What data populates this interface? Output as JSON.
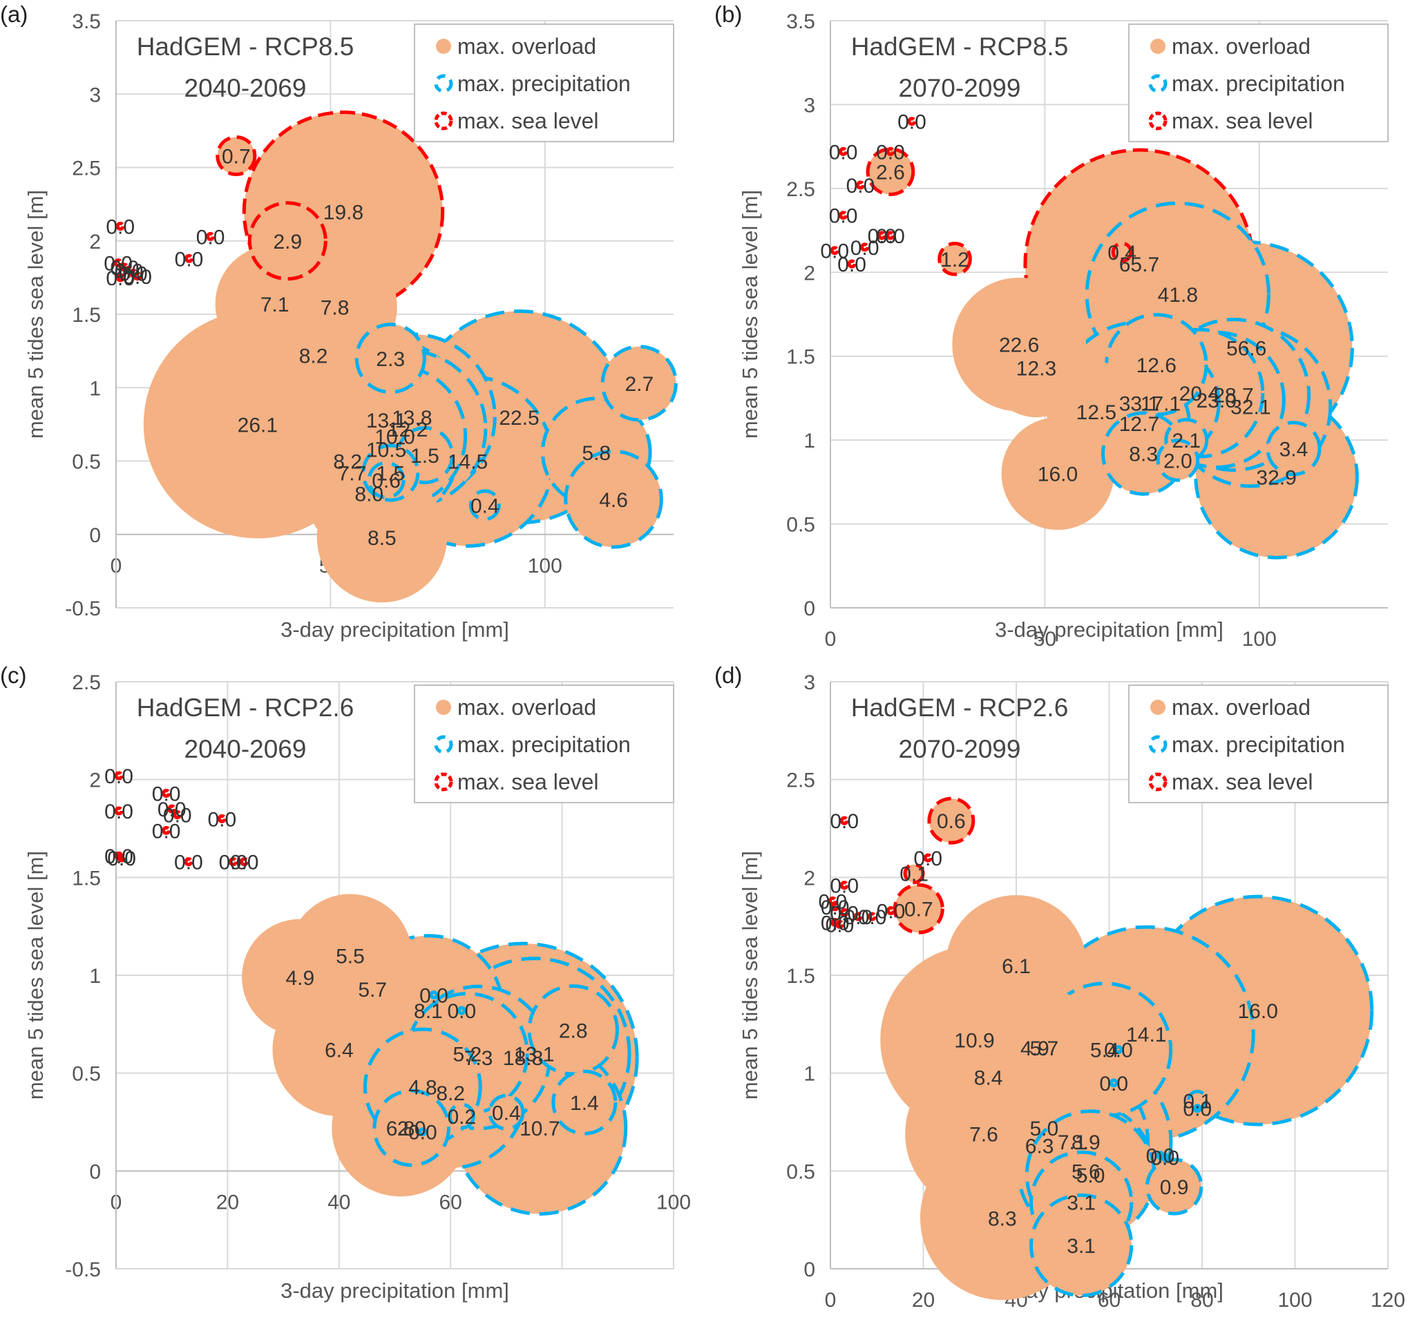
{
  "colors": {
    "overload": "#F4B183",
    "precipitation": "#00B0F0",
    "sea_level": "#FF0000",
    "grid": "#D9D9D9",
    "text": "#404040"
  },
  "legend": {
    "items": [
      {
        "label": "max. overload",
        "kind": "overload"
      },
      {
        "label": "max. precipitation",
        "kind": "precipitation"
      },
      {
        "label": "max. sea level",
        "kind": "sea_level"
      }
    ],
    "placement": "top-right"
  },
  "chart_data": [
    {
      "panel": "(a)",
      "type": "bubble",
      "title": [
        "HadGEM - RCP8.5",
        "2040-2069"
      ],
      "xlabel": "3-day precipitation [mm]",
      "ylabel": "mean 5 tides sea level [m]",
      "xlim": [
        0,
        130
      ],
      "ylim": [
        -0.5,
        3.5
      ],
      "xticks": [
        0,
        50,
        100
      ],
      "yticks": [
        -0.5,
        0,
        0.5,
        1,
        1.5,
        2,
        2.5,
        3,
        3.5
      ],
      "yticklabels": [
        "-0.5",
        "0",
        "0.5",
        "1",
        "1.5",
        "2",
        "2.5",
        "3",
        "3.5"
      ],
      "points": [
        {
          "x": 33,
          "y": 0.75,
          "v": 26.1,
          "kind": "overload"
        },
        {
          "x": 94,
          "y": 0.8,
          "v": 22.5,
          "kind": "precipitation"
        },
        {
          "x": 53,
          "y": 2.2,
          "v": 19.8,
          "kind": "sea_level"
        },
        {
          "x": 82,
          "y": 0.5,
          "v": 14.5,
          "kind": "precipitation"
        },
        {
          "x": 63,
          "y": 0.78,
          "v": 13.1,
          "kind": "precipitation"
        },
        {
          "x": 69,
          "y": 0.8,
          "v": 13.8,
          "kind": "precipitation"
        },
        {
          "x": 68,
          "y": 0.72,
          "v": 12.2,
          "kind": "precipitation"
        },
        {
          "x": 65,
          "y": 0.67,
          "v": 10.0,
          "kind": "precipitation"
        },
        {
          "x": 63,
          "y": 0.58,
          "v": 10.5,
          "kind": "precipitation"
        },
        {
          "x": 46,
          "y": 1.22,
          "v": 8.2,
          "kind": "overload"
        },
        {
          "x": 54,
          "y": 0.5,
          "v": 8.2,
          "kind": "overload"
        },
        {
          "x": 62,
          "y": -0.02,
          "v": 8.5,
          "kind": "overload"
        },
        {
          "x": 59,
          "y": 0.28,
          "v": 8.0,
          "kind": "overload"
        },
        {
          "x": 51,
          "y": 1.55,
          "v": 7.8,
          "kind": "overload"
        },
        {
          "x": 55,
          "y": 0.42,
          "v": 7.7,
          "kind": "overload"
        },
        {
          "x": 37,
          "y": 1.57,
          "v": 7.1,
          "kind": "overload"
        },
        {
          "x": 112,
          "y": 0.56,
          "v": 5.8,
          "kind": "precipitation"
        },
        {
          "x": 116,
          "y": 0.24,
          "v": 4.6,
          "kind": "precipitation"
        },
        {
          "x": 40,
          "y": 2.0,
          "v": 2.9,
          "kind": "sea_level"
        },
        {
          "x": 122,
          "y": 1.03,
          "v": 2.7,
          "kind": "precipitation"
        },
        {
          "x": 64,
          "y": 1.2,
          "v": 2.3,
          "kind": "precipitation"
        },
        {
          "x": 72,
          "y": 0.54,
          "v": 1.5,
          "kind": "precipitation"
        },
        {
          "x": 64,
          "y": 0.42,
          "v": 1.5,
          "kind": "precipitation"
        },
        {
          "x": 63,
          "y": 0.37,
          "v": 0.6,
          "kind": "precipitation"
        },
        {
          "x": 28,
          "y": 2.58,
          "v": 0.7,
          "kind": "sea_level"
        },
        {
          "x": 86,
          "y": 0.2,
          "v": 0.4,
          "kind": "precipitation"
        },
        {
          "x": 1,
          "y": 2.1,
          "v": 0.0,
          "kind": "sea_level"
        },
        {
          "x": 22,
          "y": 2.03,
          "v": 0.0,
          "kind": "sea_level"
        },
        {
          "x": 17,
          "y": 1.88,
          "v": 0.0,
          "kind": "sea_level"
        },
        {
          "x": 0.5,
          "y": 1.85,
          "v": 0.0,
          "kind": "sea_level"
        },
        {
          "x": 2,
          "y": 1.82,
          "v": 0.0,
          "kind": "sea_level"
        },
        {
          "x": 3,
          "y": 1.8,
          "v": 0.0,
          "kind": "sea_level"
        },
        {
          "x": 4,
          "y": 1.78,
          "v": 0.0,
          "kind": "sea_level"
        },
        {
          "x": 1,
          "y": 1.75,
          "v": 0.0,
          "kind": "sea_level"
        },
        {
          "x": 5,
          "y": 1.76,
          "v": 0.0,
          "kind": "sea_level"
        }
      ]
    },
    {
      "panel": "(b)",
      "type": "bubble",
      "title": [
        "HadGEM - RCP8.5",
        "2070-2099"
      ],
      "xlabel": "3-day precipitation [mm]",
      "ylabel": "mean 5 tides sea level [m]",
      "xlim": [
        0,
        130
      ],
      "ylim": [
        0,
        3.5
      ],
      "xticks": [
        0,
        50,
        100
      ],
      "yticks": [
        0,
        0.5,
        1,
        1.5,
        2,
        2.5,
        3,
        3.5
      ],
      "yticklabels": [
        "0",
        "0.5",
        "1",
        "1.5",
        "2",
        "2.5",
        "3",
        "3.5"
      ],
      "points": [
        {
          "x": 72,
          "y": 2.05,
          "v": 65.7,
          "kind": "sea_level"
        },
        {
          "x": 97,
          "y": 1.55,
          "v": 56.6,
          "kind": "precipitation"
        },
        {
          "x": 81,
          "y": 1.87,
          "v": 41.8,
          "kind": "precipitation"
        },
        {
          "x": 72,
          "y": 1.22,
          "v": 33.1,
          "kind": "precipitation"
        },
        {
          "x": 104,
          "y": 0.78,
          "v": 32.9,
          "kind": "precipitation"
        },
        {
          "x": 98,
          "y": 1.2,
          "v": 32.1,
          "kind": "precipitation"
        },
        {
          "x": 94,
          "y": 1.27,
          "v": 28.7,
          "kind": "precipitation"
        },
        {
          "x": 44,
          "y": 1.57,
          "v": 22.6,
          "kind": "overload"
        },
        {
          "x": 86,
          "y": 1.28,
          "v": 20.4,
          "kind": "precipitation"
        },
        {
          "x": 90,
          "y": 1.24,
          "v": 23.0,
          "kind": "precipitation"
        },
        {
          "x": 77,
          "y": 1.22,
          "v": 17.1,
          "kind": "precipitation"
        },
        {
          "x": 53,
          "y": 0.8,
          "v": 16.0,
          "kind": "overload"
        },
        {
          "x": 76,
          "y": 1.45,
          "v": 12.6,
          "kind": "precipitation"
        },
        {
          "x": 72,
          "y": 1.1,
          "v": 12.7,
          "kind": "precipitation"
        },
        {
          "x": 62,
          "y": 1.17,
          "v": 12.5,
          "kind": "overload"
        },
        {
          "x": 48,
          "y": 1.43,
          "v": 12.3,
          "kind": "overload"
        },
        {
          "x": 73,
          "y": 0.92,
          "v": 8.3,
          "kind": "precipitation"
        },
        {
          "x": 108,
          "y": 0.95,
          "v": 3.4,
          "kind": "precipitation"
        },
        {
          "x": 14,
          "y": 2.6,
          "v": 2.6,
          "kind": "sea_level"
        },
        {
          "x": 83,
          "y": 1.0,
          "v": 2.1,
          "kind": "precipitation"
        },
        {
          "x": 81,
          "y": 0.88,
          "v": 2.0,
          "kind": "precipitation"
        },
        {
          "x": 29,
          "y": 2.08,
          "v": 1.2,
          "kind": "sea_level"
        },
        {
          "x": 68,
          "y": 2.12,
          "v": 0.4,
          "kind": "sea_level"
        },
        {
          "x": 19,
          "y": 2.9,
          "v": 0.0,
          "kind": "sea_level"
        },
        {
          "x": 3,
          "y": 2.72,
          "v": 0.0,
          "kind": "sea_level"
        },
        {
          "x": 14,
          "y": 2.72,
          "v": 0.0,
          "kind": "sea_level"
        },
        {
          "x": 7,
          "y": 2.52,
          "v": 0.0,
          "kind": "sea_level"
        },
        {
          "x": 3,
          "y": 2.34,
          "v": 0.0,
          "kind": "sea_level"
        },
        {
          "x": 12,
          "y": 2.22,
          "v": 0.0,
          "kind": "sea_level"
        },
        {
          "x": 14,
          "y": 2.22,
          "v": 0.0,
          "kind": "sea_level"
        },
        {
          "x": 8,
          "y": 2.15,
          "v": 0.0,
          "kind": "sea_level"
        },
        {
          "x": 1,
          "y": 2.13,
          "v": 0.0,
          "kind": "sea_level"
        },
        {
          "x": 5,
          "y": 2.05,
          "v": 0.0,
          "kind": "sea_level"
        }
      ]
    },
    {
      "panel": "(c)",
      "type": "bubble",
      "title": [
        "HadGEM - RCP2.6",
        "2040-2069"
      ],
      "xlabel": "3-day precipitation [mm]",
      "ylabel": "mean 5 tides sea level [m]",
      "xlim": [
        0,
        100
      ],
      "ylim": [
        -0.5,
        2.5
      ],
      "xticks": [
        0,
        20,
        40,
        60,
        80,
        100
      ],
      "yticks": [
        -0.5,
        0,
        0.5,
        1,
        1.5,
        2,
        2.5
      ],
      "yticklabels": [
        "-0.5",
        "0",
        "0.5",
        "1",
        "1.5",
        "2",
        "2.5"
      ],
      "points": [
        {
          "x": 51,
          "y": 0.22,
          "v": 6.8,
          "kind": "overload"
        },
        {
          "x": 76,
          "y": 0.22,
          "v": 10.7,
          "kind": "precipitation"
        },
        {
          "x": 73,
          "y": 0.58,
          "v": 18.8,
          "kind": "precipitation"
        },
        {
          "x": 75,
          "y": 0.6,
          "v": 13.1,
          "kind": "precipitation"
        },
        {
          "x": 56,
          "y": 0.82,
          "v": 8.1,
          "kind": "precipitation"
        },
        {
          "x": 60,
          "y": 0.4,
          "v": 8.2,
          "kind": "precipitation"
        },
        {
          "x": 65,
          "y": 0.58,
          "v": 7.3,
          "kind": "precipitation"
        },
        {
          "x": 63,
          "y": 0.6,
          "v": 5.2,
          "kind": "precipitation"
        },
        {
          "x": 55,
          "y": 0.43,
          "v": 4.8,
          "kind": "precipitation"
        },
        {
          "x": 40,
          "y": 0.62,
          "v": 6.4,
          "kind": "overload"
        },
        {
          "x": 46,
          "y": 0.93,
          "v": 5.7,
          "kind": "overload"
        },
        {
          "x": 42,
          "y": 1.1,
          "v": 5.5,
          "kind": "overload"
        },
        {
          "x": 33,
          "y": 0.99,
          "v": 4.9,
          "kind": "overload"
        },
        {
          "x": 82,
          "y": 0.72,
          "v": 2.8,
          "kind": "precipitation"
        },
        {
          "x": 84,
          "y": 0.35,
          "v": 1.4,
          "kind": "precipitation"
        },
        {
          "x": 70,
          "y": 0.3,
          "v": 0.4,
          "kind": "precipitation"
        },
        {
          "x": 62,
          "y": 0.28,
          "v": 0.2,
          "kind": "precipitation"
        },
        {
          "x": 53,
          "y": 0.22,
          "v": 2.0,
          "kind": "precipitation"
        },
        {
          "x": 55,
          "y": 0.2,
          "v": 0.0,
          "kind": "precipitation"
        },
        {
          "x": 57,
          "y": 0.9,
          "v": 0.0,
          "kind": "precipitation"
        },
        {
          "x": 62,
          "y": 0.82,
          "v": 0.0,
          "kind": "precipitation"
        },
        {
          "x": 0.5,
          "y": 2.02,
          "v": 0.0,
          "kind": "sea_level"
        },
        {
          "x": 0.5,
          "y": 1.84,
          "v": 0.0,
          "kind": "sea_level"
        },
        {
          "x": 9,
          "y": 1.93,
          "v": 0.0,
          "kind": "sea_level"
        },
        {
          "x": 10,
          "y": 1.85,
          "v": 0.0,
          "kind": "sea_level"
        },
        {
          "x": 11,
          "y": 1.82,
          "v": 0.0,
          "kind": "sea_level"
        },
        {
          "x": 9,
          "y": 1.74,
          "v": 0.0,
          "kind": "sea_level"
        },
        {
          "x": 19,
          "y": 1.8,
          "v": 0.0,
          "kind": "sea_level"
        },
        {
          "x": 0.5,
          "y": 1.61,
          "v": 0.0,
          "kind": "sea_level"
        },
        {
          "x": 1,
          "y": 1.6,
          "v": 0.0,
          "kind": "sea_level"
        },
        {
          "x": 13,
          "y": 1.58,
          "v": 0.0,
          "kind": "sea_level"
        },
        {
          "x": 21,
          "y": 1.58,
          "v": 0.0,
          "kind": "sea_level"
        },
        {
          "x": 23,
          "y": 1.58,
          "v": 0.0,
          "kind": "sea_level"
        }
      ]
    },
    {
      "panel": "(d)",
      "type": "bubble",
      "title": [
        "HadGEM - RCP2.6",
        "2070-2099"
      ],
      "xlabel": "3-day precipitation [mm]",
      "ylabel": "mean 5 tides sea level [m]",
      "xlim": [
        0,
        120
      ],
      "ylim": [
        0,
        3
      ],
      "xticks": [
        0,
        20,
        40,
        60,
        80,
        100,
        120
      ],
      "yticks": [
        0,
        0.5,
        1,
        1.5,
        2,
        2.5,
        3
      ],
      "yticklabels": [
        "0",
        "0.5",
        "1",
        "1.5",
        "2",
        "2.5",
        "3"
      ],
      "points": [
        {
          "x": 92,
          "y": 1.32,
          "v": 16.0,
          "kind": "precipitation"
        },
        {
          "x": 68,
          "y": 1.2,
          "v": 14.1,
          "kind": "precipitation"
        },
        {
          "x": 31,
          "y": 1.17,
          "v": 10.9,
          "kind": "overload"
        },
        {
          "x": 34,
          "y": 0.98,
          "v": 8.4,
          "kind": "overload"
        },
        {
          "x": 37,
          "y": 0.26,
          "v": 8.3,
          "kind": "overload"
        },
        {
          "x": 55,
          "y": 0.65,
          "v": 8.9,
          "kind": "precipitation"
        },
        {
          "x": 33,
          "y": 0.69,
          "v": 7.6,
          "kind": "overload"
        },
        {
          "x": 52,
          "y": 0.65,
          "v": 7.1,
          "kind": "precipitation"
        },
        {
          "x": 45,
          "y": 0.63,
          "v": 6.3,
          "kind": "overload"
        },
        {
          "x": 40,
          "y": 1.55,
          "v": 6.1,
          "kind": "overload"
        },
        {
          "x": 46,
          "y": 1.13,
          "v": 5.7,
          "kind": "overload"
        },
        {
          "x": 46,
          "y": 0.72,
          "v": 5.0,
          "kind": "overload"
        },
        {
          "x": 55,
          "y": 0.5,
          "v": 5.6,
          "kind": "precipitation"
        },
        {
          "x": 56,
          "y": 0.48,
          "v": 5.0,
          "kind": "precipitation"
        },
        {
          "x": 59,
          "y": 1.12,
          "v": 5.4,
          "kind": "precipitation"
        },
        {
          "x": 44,
          "y": 1.13,
          "v": 4.9,
          "kind": "overload"
        },
        {
          "x": 54,
          "y": 0.34,
          "v": 3.1,
          "kind": "precipitation"
        },
        {
          "x": 54,
          "y": 0.12,
          "v": 3.1,
          "kind": "precipitation"
        },
        {
          "x": 74,
          "y": 0.42,
          "v": 0.9,
          "kind": "precipitation"
        },
        {
          "x": 26,
          "y": 2.29,
          "v": 0.6,
          "kind": "sea_level"
        },
        {
          "x": 19,
          "y": 1.84,
          "v": 0.7,
          "kind": "sea_level"
        },
        {
          "x": 18,
          "y": 2.02,
          "v": 0.1,
          "kind": "sea_level"
        },
        {
          "x": 79,
          "y": 0.86,
          "v": 0.1,
          "kind": "precipitation"
        },
        {
          "x": 79,
          "y": 0.82,
          "v": 0.0,
          "kind": "precipitation"
        },
        {
          "x": 71,
          "y": 0.58,
          "v": 0.0,
          "kind": "precipitation"
        },
        {
          "x": 72,
          "y": 0.57,
          "v": 0.0,
          "kind": "precipitation"
        },
        {
          "x": 62,
          "y": 1.12,
          "v": 0.0,
          "kind": "precipitation"
        },
        {
          "x": 61,
          "y": 0.95,
          "v": 0.0,
          "kind": "precipitation"
        },
        {
          "x": 3,
          "y": 2.29,
          "v": 0.0,
          "kind": "sea_level"
        },
        {
          "x": 21,
          "y": 2.1,
          "v": 0.0,
          "kind": "sea_level"
        },
        {
          "x": 3,
          "y": 1.96,
          "v": 0.0,
          "kind": "sea_level"
        },
        {
          "x": 0.5,
          "y": 1.88,
          "v": 0.0,
          "kind": "sea_level"
        },
        {
          "x": 1,
          "y": 1.85,
          "v": 0.0,
          "kind": "sea_level"
        },
        {
          "x": 3,
          "y": 1.82,
          "v": 0.0,
          "kind": "sea_level"
        },
        {
          "x": 6,
          "y": 1.8,
          "v": 0.0,
          "kind": "sea_level"
        },
        {
          "x": 9,
          "y": 1.8,
          "v": 0.0,
          "kind": "sea_level"
        },
        {
          "x": 13,
          "y": 1.83,
          "v": 0.0,
          "kind": "sea_level"
        },
        {
          "x": 1,
          "y": 1.77,
          "v": 0.0,
          "kind": "sea_level"
        },
        {
          "x": 2,
          "y": 1.76,
          "v": 0.0,
          "kind": "sea_level"
        }
      ]
    }
  ]
}
